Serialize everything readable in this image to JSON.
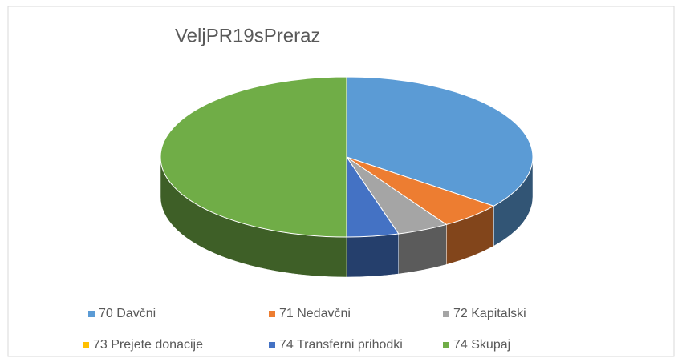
{
  "chart_data": {
    "type": "pie3d",
    "title": "VeljPR19sPreraz",
    "categories": [
      "70 Davčni",
      "71 Nedavčni",
      "72 Kapitalski",
      "73 Prejete donacije",
      "74 Transferni prihodki",
      "74 Skupaj"
    ],
    "values": [
      35.5,
      5.5,
      4.5,
      0,
      4.5,
      50
    ],
    "colors": [
      "#5b9bd5",
      "#ed7d31",
      "#a5a5a5",
      "#ffc000",
      "#4472c4",
      "#70ad47"
    ],
    "legend": "bottom"
  }
}
